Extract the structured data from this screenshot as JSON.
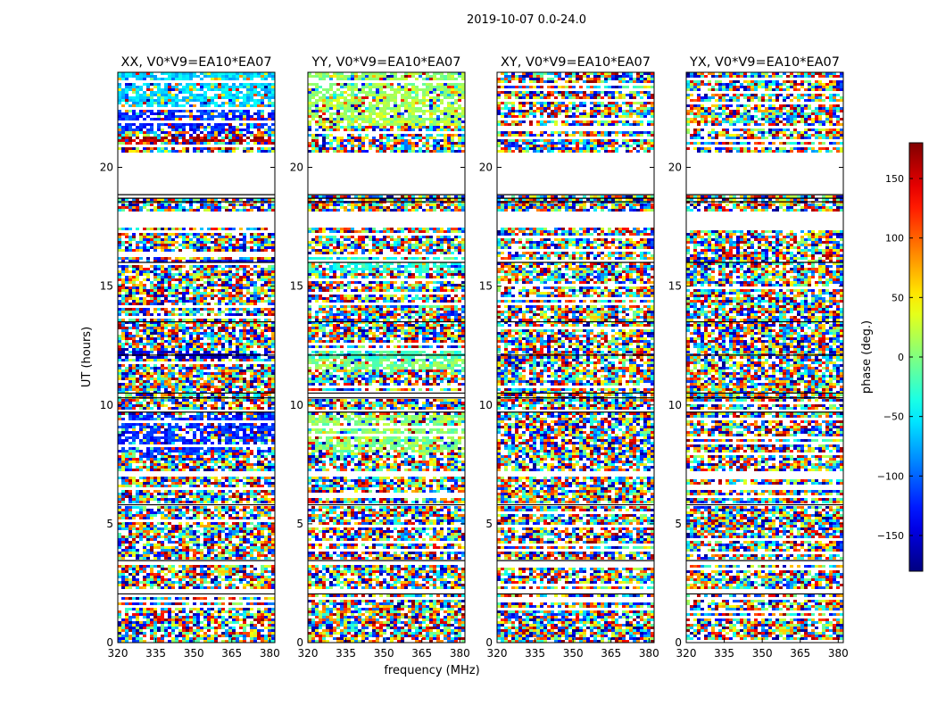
{
  "figure": {
    "title": "2019-10-07 0.0-24.0",
    "ylabel": "UT (hours)",
    "xlabel": "frequency (MHz)"
  },
  "chart_data": {
    "type": "heatmap",
    "title": "2019-10-07 0.0-24.0",
    "xlabel": "frequency (MHz)",
    "ylabel": "UT (hours)",
    "xlim": [
      320,
      382
    ],
    "ylim": [
      0,
      24
    ],
    "xticks": [
      320,
      335,
      350,
      365,
      380
    ],
    "yticks": [
      0,
      5,
      10,
      15,
      20
    ],
    "colormap": "jet",
    "colorbar": {
      "label": "phase (deg.)",
      "range": [
        -180,
        180
      ],
      "ticks": [
        150,
        100,
        50,
        0,
        -50,
        -100,
        -150
      ],
      "tick_labels": [
        "150",
        "100",
        "50",
        "0",
        "−50",
        "−100",
        "−150"
      ]
    },
    "panels": [
      {
        "title": "XX, V0*V9=EA10*EA07",
        "blank_ut_ranges": [
          [
            18.8,
            20.6
          ],
          [
            17.5,
            18.1
          ],
          [
            9.7,
            9.85
          ],
          [
            7.0,
            7.2
          ],
          [
            5.7,
            5.85
          ],
          [
            3.3,
            3.45
          ],
          [
            2.0,
            2.2
          ]
        ],
        "dominant_phase_bands": [
          {
            "ut": [
              22.5,
              24.0
            ],
            "phase": -60
          },
          {
            "ut": [
              21.5,
              22.5
            ],
            "phase": -120
          },
          {
            "ut": [
              21.1,
              21.3
            ],
            "phase": 165
          },
          {
            "ut": [
              15.9,
              16.1
            ],
            "phase": -140
          },
          {
            "ut": [
              12.0,
              12.3
            ],
            "phase": -150
          },
          {
            "ut": [
              8.0,
              9.6
            ],
            "phase": -120
          }
        ]
      },
      {
        "title": "YY, V0*V9=EA10*EA07",
        "blank_ut_ranges": [
          [
            18.8,
            20.6
          ],
          [
            17.5,
            18.1
          ],
          [
            9.7,
            9.85
          ],
          [
            7.0,
            7.2
          ],
          [
            5.7,
            5.85
          ],
          [
            3.3,
            3.45
          ],
          [
            2.0,
            2.2
          ]
        ],
        "dominant_phase_bands": [
          {
            "ut": [
              23.0,
              24.0
            ],
            "phase": 10
          },
          {
            "ut": [
              21.8,
              23.0
            ],
            "phase": 15
          },
          {
            "ut": [
              15.6,
              16.3
            ],
            "phase": -30
          },
          {
            "ut": [
              12.0,
              12.3
            ],
            "phase": -20
          },
          {
            "ut": [
              11.5,
              11.9
            ],
            "phase": 0
          },
          {
            "ut": [
              8.0,
              9.6
            ],
            "phase": 5
          }
        ]
      },
      {
        "title": "XY, V0*V9=EA10*EA07",
        "blank_ut_ranges": [
          [
            18.8,
            20.6
          ],
          [
            17.5,
            18.1
          ],
          [
            9.7,
            9.85
          ],
          [
            7.0,
            7.2
          ],
          [
            5.7,
            5.85
          ],
          [
            3.3,
            3.45
          ],
          [
            2.0,
            2.2
          ]
        ],
        "dominant_phase_bands": []
      },
      {
        "title": "YX, V0*V9=EA10*EA07",
        "blank_ut_ranges": [
          [
            18.8,
            20.6
          ],
          [
            17.5,
            18.1
          ],
          [
            9.7,
            9.85
          ],
          [
            7.0,
            7.2
          ],
          [
            5.7,
            5.85
          ],
          [
            3.3,
            3.45
          ],
          [
            2.0,
            2.2
          ]
        ],
        "dominant_phase_bands": []
      }
    ]
  }
}
